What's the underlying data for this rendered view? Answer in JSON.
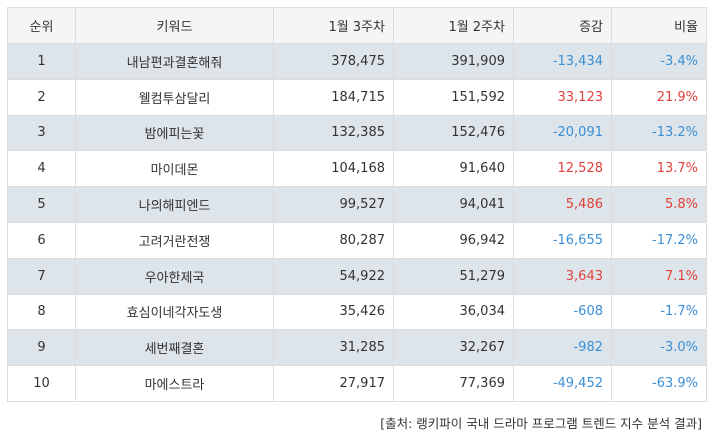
{
  "table": {
    "headers": [
      "순위",
      "키워드",
      "1월 3주차",
      "1월 2주차",
      "증감",
      "비율"
    ],
    "rows": [
      {
        "rank": "1",
        "keyword": "내남편과결혼해줘",
        "w3": "378,475",
        "w2": "391,909",
        "change": "-13,434",
        "ratio": "-3.4%",
        "dir": "neg"
      },
      {
        "rank": "2",
        "keyword": "웰컴투삼달리",
        "w3": "184,715",
        "w2": "151,592",
        "change": "33,123",
        "ratio": "21.9%",
        "dir": "pos"
      },
      {
        "rank": "3",
        "keyword": "밤에피는꽃",
        "w3": "132,385",
        "w2": "152,476",
        "change": "-20,091",
        "ratio": "-13.2%",
        "dir": "neg"
      },
      {
        "rank": "4",
        "keyword": "마이데몬",
        "w3": "104,168",
        "w2": "91,640",
        "change": "12,528",
        "ratio": "13.7%",
        "dir": "pos"
      },
      {
        "rank": "5",
        "keyword": "나의해피엔드",
        "w3": "99,527",
        "w2": "94,041",
        "change": "5,486",
        "ratio": "5.8%",
        "dir": "pos"
      },
      {
        "rank": "6",
        "keyword": "고려거란전쟁",
        "w3": "80,287",
        "w2": "96,942",
        "change": "-16,655",
        "ratio": "-17.2%",
        "dir": "neg"
      },
      {
        "rank": "7",
        "keyword": "우아한제국",
        "w3": "54,922",
        "w2": "51,279",
        "change": "3,643",
        "ratio": "7.1%",
        "dir": "pos"
      },
      {
        "rank": "8",
        "keyword": "효심이네각자도생",
        "w3": "35,426",
        "w2": "36,034",
        "change": "-608",
        "ratio": "-1.7%",
        "dir": "neg"
      },
      {
        "rank": "9",
        "keyword": "세번째결혼",
        "w3": "31,285",
        "w2": "32,267",
        "change": "-982",
        "ratio": "-3.0%",
        "dir": "neg"
      },
      {
        "rank": "10",
        "keyword": "마에스트라",
        "w3": "27,917",
        "w2": "77,369",
        "change": "-49,452",
        "ratio": "-63.9%",
        "dir": "neg"
      }
    ]
  },
  "colors": {
    "negative": "#3b8fd6",
    "positive": "#e0413c",
    "stripe": "#dde5ea",
    "header_bg": "#f4f5f7"
  },
  "source": "[출처: 랭키파이 국내 드라마 프로그램 트렌드 지수 분석 결과]"
}
